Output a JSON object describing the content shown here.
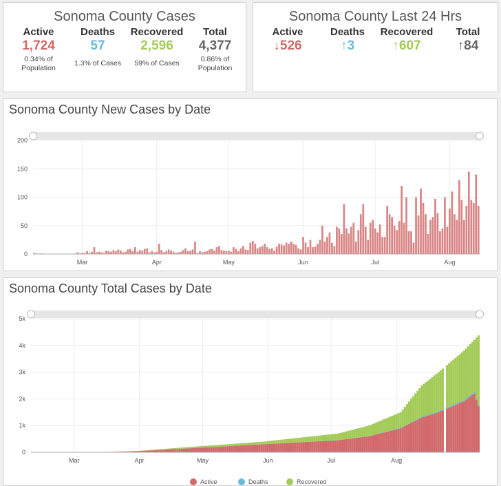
{
  "totals": {
    "title": "Sonoma County Cases",
    "columns": [
      {
        "label": "Active",
        "value": "1,724",
        "sub1": "0.34% of",
        "sub2": "Population",
        "color": "#d2696a"
      },
      {
        "label": "Deaths",
        "value": "57",
        "sub1": "",
        "sub2": "1.3% of Cases",
        "color": "#69b9d8"
      },
      {
        "label": "Recovered",
        "value": "2,596",
        "sub1": "",
        "sub2": "59% of Cases",
        "color": "#a3cb58"
      },
      {
        "label": "Total",
        "value": "4,377",
        "sub1": "0.86% of",
        "sub2": "Population",
        "color": "#666666"
      }
    ]
  },
  "last24": {
    "title": "Sonoma County Last 24 Hrs",
    "columns": [
      {
        "label": "Active",
        "value": "↓526",
        "color": "#d2696a"
      },
      {
        "label": "Deaths",
        "value": "↑3",
        "color": "#69b9d8"
      },
      {
        "label": "Recovered",
        "value": "↑607",
        "color": "#a3cb58"
      },
      {
        "label": "Total",
        "value": "↑84",
        "color": "#666666"
      }
    ]
  },
  "chart_data": [
    {
      "type": "bar",
      "title": "Sonoma County New Cases by Date",
      "x_tick_labels": [
        "Mar",
        "Apr",
        "May",
        "Jun",
        "Jul",
        "Aug"
      ],
      "y_ticks": [
        0,
        50,
        100,
        150,
        200
      ],
      "ylim": [
        0,
        200
      ],
      "grid": true,
      "color": "#d98585",
      "start_date": "2020-02-10",
      "values": [
        2,
        1,
        0,
        1,
        0,
        0,
        0,
        0,
        0,
        0,
        0,
        0,
        0,
        0,
        0,
        0,
        0,
        0,
        3,
        1,
        2,
        2,
        5,
        2,
        4,
        12,
        3,
        4,
        3,
        2,
        6,
        5,
        4,
        7,
        5,
        8,
        6,
        3,
        4,
        8,
        9,
        5,
        12,
        4,
        7,
        6,
        9,
        10,
        3,
        5,
        3,
        4,
        18,
        7,
        3,
        5,
        8,
        6,
        4,
        2,
        3,
        4,
        7,
        10,
        5,
        6,
        8,
        22,
        2,
        5,
        3,
        4,
        5,
        8,
        9,
        6,
        12,
        14,
        7,
        6,
        5,
        6,
        4,
        12,
        9,
        5,
        10,
        14,
        8,
        7,
        20,
        23,
        18,
        10,
        12,
        14,
        18,
        12,
        9,
        10,
        6,
        13,
        18,
        17,
        15,
        20,
        18,
        22,
        18,
        16,
        10,
        8,
        30,
        20,
        12,
        25,
        12,
        13,
        18,
        25,
        50,
        22,
        30,
        38,
        20,
        14,
        48,
        45,
        35,
        88,
        45,
        36,
        48,
        55,
        22,
        42,
        70,
        88,
        48,
        25,
        55,
        60,
        45,
        38,
        52,
        30,
        30,
        85,
        70,
        65,
        50,
        42,
        58,
        120,
        55,
        100,
        40,
        40,
        20,
        100,
        68,
        115,
        90,
        70,
        35,
        60,
        65,
        97,
        72,
        40,
        45,
        100,
        48,
        80,
        110,
        70,
        60,
        130,
        95,
        60,
        85,
        145,
        95,
        90,
        140,
        85
      ],
      "annotations": []
    },
    {
      "type": "area",
      "title": "Sonoma County Total Cases by Date",
      "x_tick_labels": [
        "Mar",
        "Apr",
        "May",
        "Jun",
        "Jul",
        "Aug"
      ],
      "y_tick_labels": [
        "0",
        "1k",
        "2k",
        "3k",
        "4k",
        "5k"
      ],
      "ylim": [
        0,
        5000
      ],
      "grid": true,
      "start_date": "2020-02-10",
      "series": [
        {
          "name": "Active",
          "color": "#d2696a"
        },
        {
          "name": "Deaths",
          "color": "#69b9d8"
        },
        {
          "name": "Recovered",
          "color": "#a3cb58"
        }
      ],
      "milestones_total": [
        [
          0,
          0
        ],
        [
          30,
          0
        ],
        [
          50,
          50
        ],
        [
          75,
          200
        ],
        [
          110,
          400
        ],
        [
          145,
          700
        ],
        [
          160,
          1000
        ],
        [
          175,
          1500
        ],
        [
          185,
          2500
        ],
        [
          193,
          3000
        ],
        [
          205,
          3800
        ],
        [
          212,
          4377
        ]
      ],
      "milestones_active": [
        [
          0,
          0
        ],
        [
          30,
          0
        ],
        [
          50,
          40
        ],
        [
          75,
          150
        ],
        [
          110,
          300
        ],
        [
          145,
          450
        ],
        [
          160,
          600
        ],
        [
          175,
          900
        ],
        [
          185,
          1300
        ],
        [
          193,
          1500
        ],
        [
          205,
          1900
        ],
        [
          210,
          2200
        ],
        [
          212,
          1724
        ]
      ],
      "milestones_deaths": [
        [
          0,
          0
        ],
        [
          150,
          5
        ],
        [
          175,
          15
        ],
        [
          200,
          45
        ],
        [
          212,
          57
        ]
      ],
      "gap_index": 196,
      "legend": [
        "Active",
        "Deaths",
        "Recovered"
      ],
      "legend_position": "bottom"
    }
  ]
}
